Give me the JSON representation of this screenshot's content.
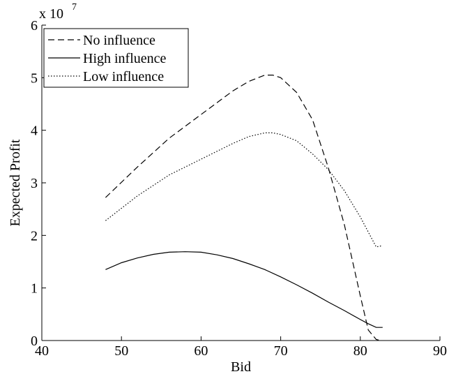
{
  "chart_data": {
    "type": "line",
    "title": "",
    "xlabel": "Bid",
    "ylabel": "Expected Profit",
    "xlim": [
      40,
      90
    ],
    "ylim": [
      0,
      6
    ],
    "xticks": [
      "40",
      "50",
      "60",
      "70",
      "80",
      "90"
    ],
    "yticks": [
      "0",
      "1",
      "2",
      "3",
      "4",
      "5",
      "6"
    ],
    "y_multiplier_label": {
      "base": "x 10",
      "exponent": "7"
    },
    "grid": false,
    "legend_position": "top-left",
    "series": [
      {
        "name": "No influence",
        "style": "dashed",
        "color": "#000000",
        "x": [
          48,
          52,
          56,
          60,
          64,
          66,
          68,
          69,
          70,
          72,
          74,
          76,
          78,
          80,
          81,
          82,
          82.6
        ],
        "y": [
          2.72,
          3.3,
          3.85,
          4.3,
          4.75,
          4.93,
          5.05,
          5.05,
          5.0,
          4.72,
          4.2,
          3.28,
          2.2,
          0.85,
          0.2,
          0.02,
          0.0
        ]
      },
      {
        "name": "High influence",
        "style": "solid",
        "color": "#000000",
        "x": [
          48,
          50,
          52,
          54,
          56,
          58,
          60,
          62,
          64,
          66,
          68,
          70,
          72,
          74,
          76,
          78,
          80,
          81,
          82,
          82.8
        ],
        "y": [
          1.35,
          1.48,
          1.57,
          1.64,
          1.68,
          1.69,
          1.68,
          1.63,
          1.56,
          1.46,
          1.35,
          1.21,
          1.06,
          0.9,
          0.73,
          0.57,
          0.4,
          0.32,
          0.25,
          0.25
        ]
      },
      {
        "name": "Low influence",
        "style": "dotted",
        "color": "#000000",
        "x": [
          48,
          52,
          56,
          60,
          64,
          66,
          68,
          69,
          70,
          72,
          74,
          76,
          78,
          80,
          82,
          82.6
        ],
        "y": [
          2.28,
          2.75,
          3.15,
          3.45,
          3.75,
          3.88,
          3.95,
          3.95,
          3.92,
          3.8,
          3.55,
          3.25,
          2.85,
          2.35,
          1.78,
          1.8
        ]
      }
    ]
  }
}
